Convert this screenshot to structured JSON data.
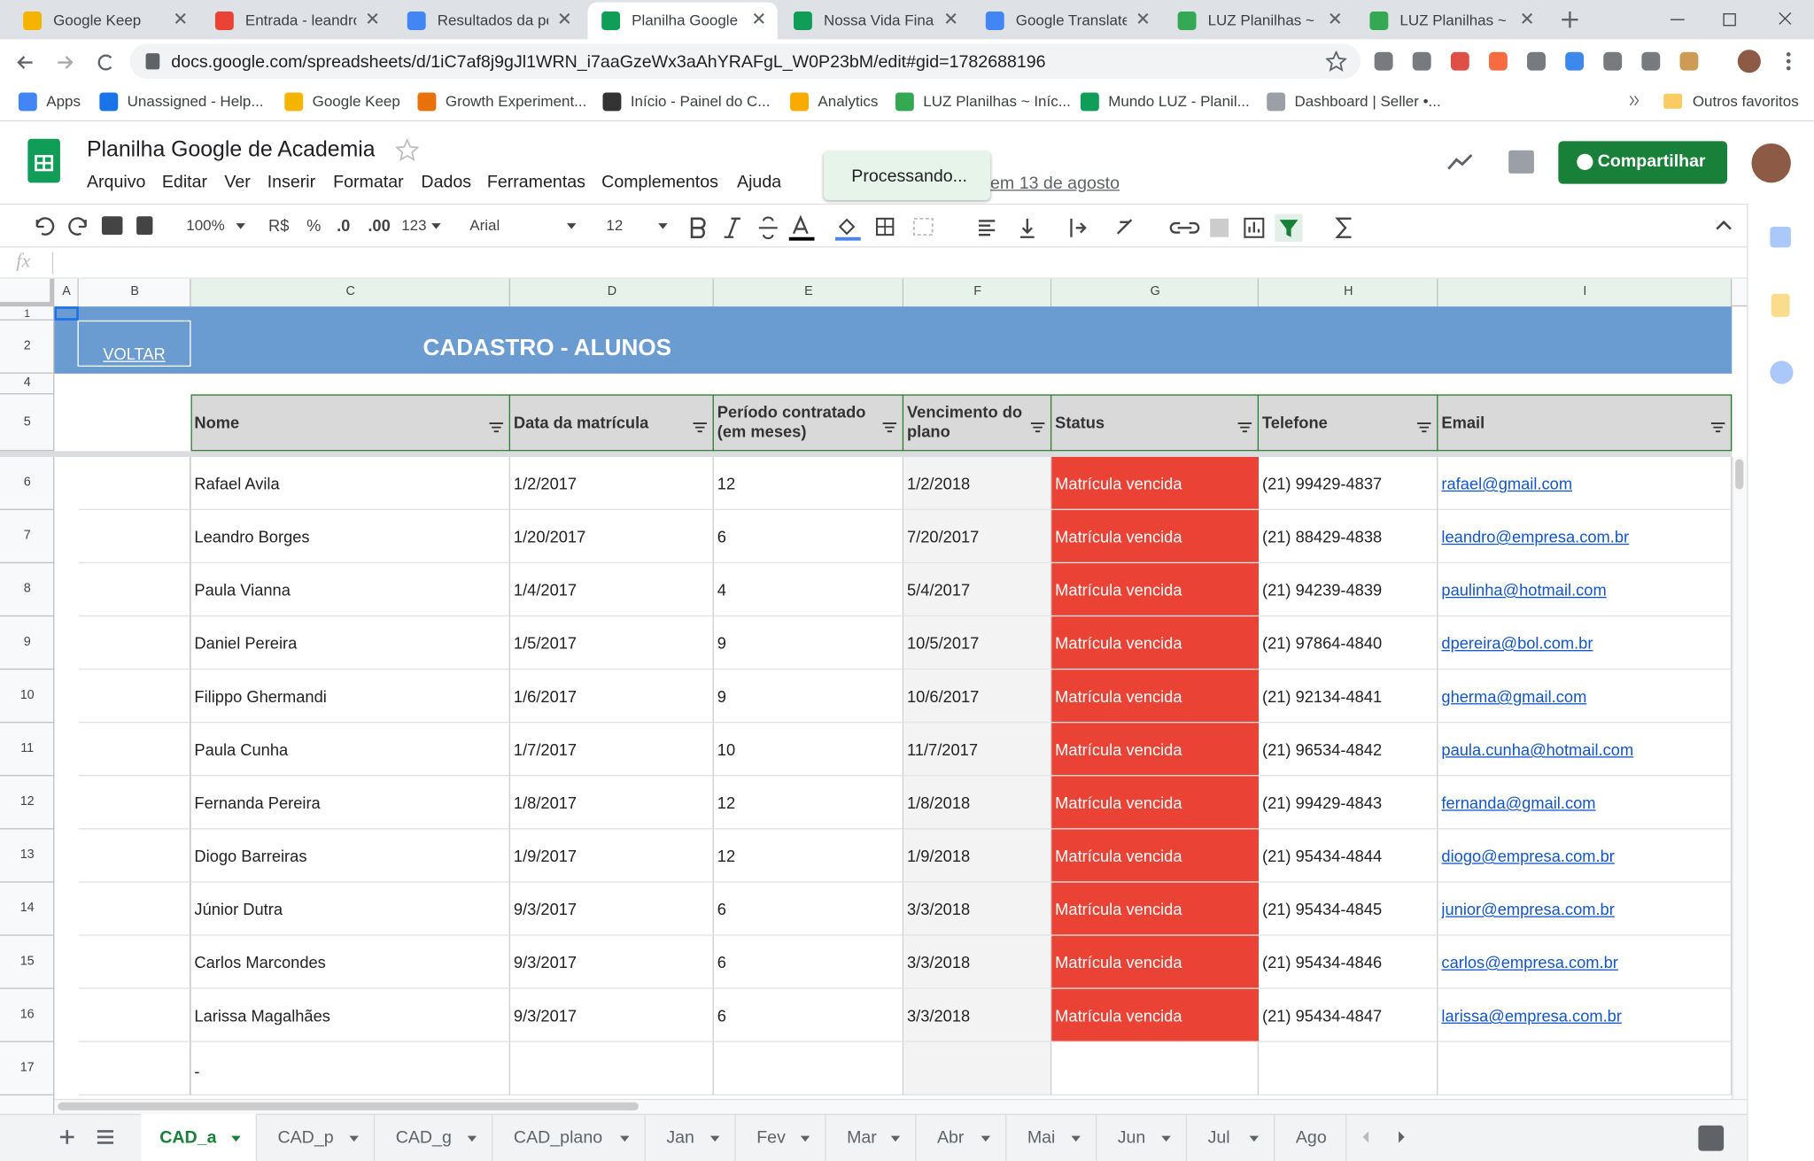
{
  "browser": {
    "tabs": [
      "Google Keep",
      "Entrada - leandro",
      "Resultados da pe",
      "Planilha Google d",
      "Nossa Vida Finan",
      "Google Translate",
      "LUZ Planilhas ~ P",
      "LUZ Planilhas ~ P"
    ],
    "url": "docs.google.com/spreadsheets/d/1iC7af8j9gJl1WRN_i7aaGzeWx3aAhYRAFgL_W0P23bM/edit#gid=1782688196",
    "bookmarks": [
      "Apps",
      "Unassigned - Help...",
      "Google Keep",
      "Growth Experiment...",
      "Início - Painel do C...",
      "Analytics",
      "LUZ Planilhas ~ Iníc...",
      "Mundo LUZ - Planil...",
      "Dashboard | Seller •..."
    ],
    "other_bookmarks": "Outros favoritos"
  },
  "doc": {
    "title": "Planilha Google de Academia",
    "menus": [
      "Arquivo",
      "Editar",
      "Ver",
      "Inserir",
      "Formatar",
      "Dados",
      "Ferramentas",
      "Complementos",
      "Ajuda"
    ],
    "last_edit": "em 13 de agosto",
    "toast": "Processando...",
    "share": "Compartilhar"
  },
  "toolbar": {
    "zoom": "100%",
    "currency": "R$",
    "percent": "%",
    "decrease_decimals": ".0",
    "increase_decimals": ".00",
    "more_formats": "123",
    "font": "Arial",
    "font_size": "12"
  },
  "formula_bar": {
    "label": "fx"
  },
  "columns": [
    "A",
    "B",
    "C",
    "D",
    "E",
    "F",
    "G",
    "H",
    "I"
  ],
  "row_numbers": [
    "1",
    "2",
    "4",
    "5",
    "6",
    "7",
    "8",
    "9",
    "10",
    "11",
    "12",
    "13",
    "14",
    "15",
    "16",
    "17"
  ],
  "sheet": {
    "back_button": "VOLTAR",
    "title": "CADASTRO - ALUNOS",
    "headers": [
      "Nome",
      "Data da matrícula",
      "Período contratado (em meses)",
      "Vencimento do plano",
      "Status",
      "Telefone",
      "Email"
    ],
    "rows": [
      [
        "Rafael Avila",
        "1/2/2017",
        "12",
        "1/2/2018",
        "Matrícula vencida",
        "(21) 99429-4837",
        "rafael@gmail.com"
      ],
      [
        "Leandro Borges",
        "1/20/2017",
        "6",
        "7/20/2017",
        "Matrícula vencida",
        "(21) 88429-4838",
        "leandro@empresa.com.br"
      ],
      [
        "Paula Vianna",
        "1/4/2017",
        "4",
        "5/4/2017",
        "Matrícula vencida",
        "(21) 94239-4839",
        "paulinha@hotmail.com"
      ],
      [
        "Daniel Pereira",
        "1/5/2017",
        "9",
        "10/5/2017",
        "Matrícula vencida",
        "(21) 97864-4840",
        "dpereira@bol.com.br"
      ],
      [
        "Filippo Ghermandi",
        "1/6/2017",
        "9",
        "10/6/2017",
        "Matrícula vencida",
        "(21) 92134-4841",
        "gherma@gmail.com"
      ],
      [
        "Paula Cunha",
        "1/7/2017",
        "10",
        "11/7/2017",
        "Matrícula vencida",
        "(21) 96534-4842",
        "paula.cunha@hotmail.com"
      ],
      [
        "Fernanda Pereira",
        "1/8/2017",
        "12",
        "1/8/2018",
        "Matrícula vencida",
        "(21) 99429-4843",
        "fernanda@gmail.com"
      ],
      [
        "Diogo Barreiras",
        "1/9/2017",
        "12",
        "1/9/2018",
        "Matrícula vencida",
        "(21) 95434-4844",
        "diogo@empresa.com.br"
      ],
      [
        "Júnior Dutra",
        "9/3/2017",
        "6",
        "3/3/2018",
        "Matrícula vencida",
        "(21) 95434-4845",
        "junior@empresa.com.br"
      ],
      [
        "Carlos Marcondes",
        "9/3/2017",
        "6",
        "3/3/2018",
        "Matrícula vencida",
        "(21) 95434-4846",
        "carlos@empresa.com.br"
      ],
      [
        "Larissa Magalhães",
        "9/3/2017",
        "6",
        "3/3/2018",
        "Matrícula vencida",
        "(21) 95434-4847",
        "larissa@empresa.com.br"
      ]
    ],
    "row17": "-"
  },
  "sheet_tabs": [
    "CAD_a",
    "CAD_p",
    "CAD_g",
    "CAD_plano",
    "Jan",
    "Fev",
    "Mar",
    "Abr",
    "Mai",
    "Jun",
    "Jul",
    "Ago"
  ]
}
